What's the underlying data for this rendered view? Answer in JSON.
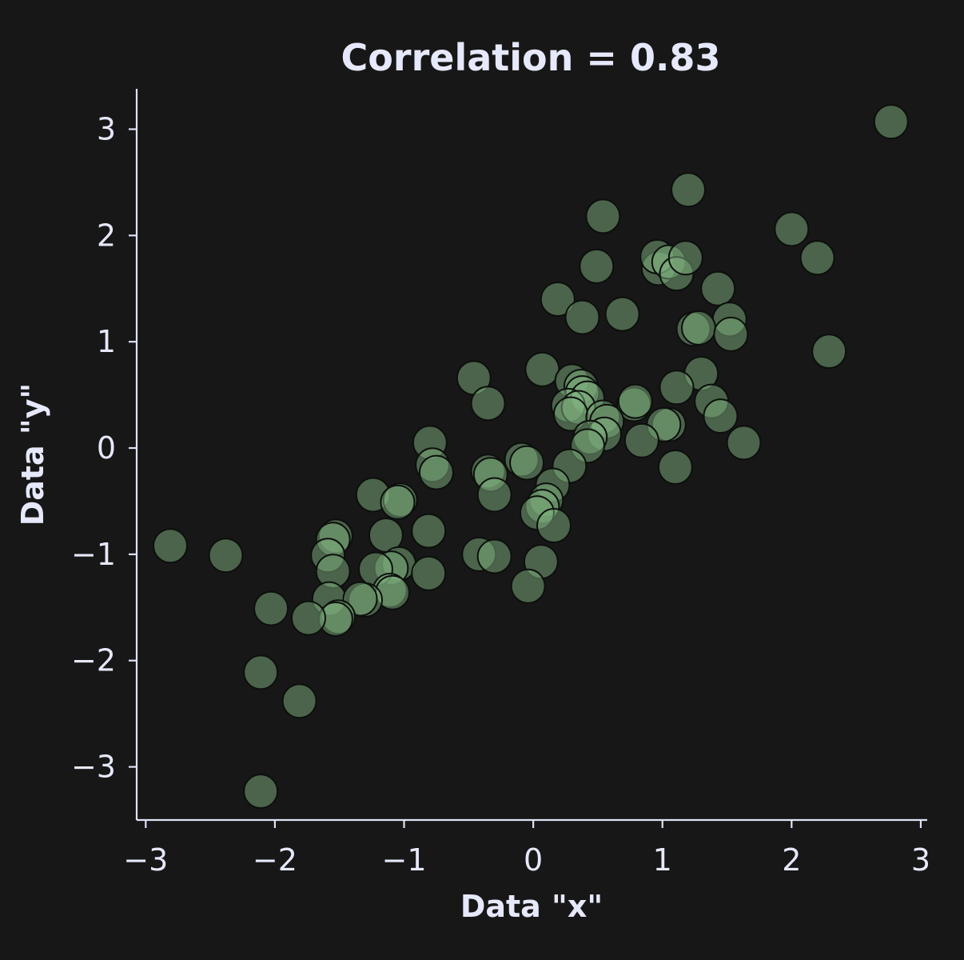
{
  "chart_data": {
    "type": "scatter",
    "title": "Correlation = 0.83",
    "xlabel": "Data \"x\"",
    "ylabel": "Data \"y\"",
    "xlim": [
      -3.07,
      3.05
    ],
    "ylim": [
      -3.5,
      3.38
    ],
    "x_ticks": [
      -3,
      -2,
      -1,
      0,
      1,
      2,
      3
    ],
    "y_ticks": [
      -3,
      -2,
      -1,
      0,
      1,
      2,
      3
    ],
    "x_tick_labels": [
      "−3",
      "−2",
      "−1",
      "0",
      "1",
      "2",
      "3"
    ],
    "y_tick_labels": [
      "−3",
      "−2",
      "−1",
      "0",
      "1",
      "2",
      "3"
    ],
    "grid": false,
    "legend": "none",
    "marker_color": "#7fb27f",
    "marker_edge": "#0c0f0c",
    "background": "#171717",
    "text_color": "#e6e8fb",
    "points": [
      {
        "x": 2.77,
        "y": 3.07
      },
      {
        "x": 1.2,
        "y": 2.43
      },
      {
        "x": 0.54,
        "y": 2.18
      },
      {
        "x": 2.0,
        "y": 2.06
      },
      {
        "x": 2.2,
        "y": 1.79
      },
      {
        "x": 0.49,
        "y": 1.71
      },
      {
        "x": 0.97,
        "y": 1.69
      },
      {
        "x": 0.96,
        "y": 1.8
      },
      {
        "x": 1.05,
        "y": 1.75
      },
      {
        "x": 1.11,
        "y": 1.64
      },
      {
        "x": 1.18,
        "y": 1.79
      },
      {
        "x": 1.43,
        "y": 1.5
      },
      {
        "x": 0.19,
        "y": 1.4
      },
      {
        "x": 0.38,
        "y": 1.23
      },
      {
        "x": 0.69,
        "y": 1.26
      },
      {
        "x": 1.52,
        "y": 1.21
      },
      {
        "x": 1.24,
        "y": 1.12
      },
      {
        "x": 1.28,
        "y": 1.13
      },
      {
        "x": 1.53,
        "y": 1.07
      },
      {
        "x": 2.29,
        "y": 0.91
      },
      {
        "x": 0.07,
        "y": 0.74
      },
      {
        "x": 1.3,
        "y": 0.7
      },
      {
        "x": -0.46,
        "y": 0.66
      },
      {
        "x": 0.3,
        "y": 0.63
      },
      {
        "x": 0.37,
        "y": 0.58
      },
      {
        "x": 1.11,
        "y": 0.57
      },
      {
        "x": 0.38,
        "y": 0.52
      },
      {
        "x": 0.42,
        "y": 0.47
      },
      {
        "x": -0.35,
        "y": 0.42
      },
      {
        "x": 1.38,
        "y": 0.44
      },
      {
        "x": 0.78,
        "y": 0.41
      },
      {
        "x": 0.79,
        "y": 0.44
      },
      {
        "x": 0.27,
        "y": 0.4
      },
      {
        "x": 0.35,
        "y": 0.38
      },
      {
        "x": 0.29,
        "y": 0.32
      },
      {
        "x": 1.45,
        "y": 0.3
      },
      {
        "x": 0.54,
        "y": 0.29
      },
      {
        "x": 0.57,
        "y": 0.25
      },
      {
        "x": 1.05,
        "y": 0.22
      },
      {
        "x": 1.01,
        "y": 0.22
      },
      {
        "x": 0.55,
        "y": 0.13
      },
      {
        "x": 0.44,
        "y": 0.1
      },
      {
        "x": 0.84,
        "y": 0.07
      },
      {
        "x": -0.8,
        "y": 0.05
      },
      {
        "x": 1.63,
        "y": 0.05
      },
      {
        "x": 0.42,
        "y": 0.02
      },
      {
        "x": -0.09,
        "y": -0.11
      },
      {
        "x": -0.05,
        "y": -0.14
      },
      {
        "x": -0.78,
        "y": -0.16
      },
      {
        "x": -0.75,
        "y": -0.23
      },
      {
        "x": -0.35,
        "y": -0.22
      },
      {
        "x": -0.33,
        "y": -0.25
      },
      {
        "x": 1.1,
        "y": -0.18
      },
      {
        "x": 0.28,
        "y": -0.17
      },
      {
        "x": 0.15,
        "y": -0.35
      },
      {
        "x": -1.24,
        "y": -0.44
      },
      {
        "x": -0.3,
        "y": -0.44
      },
      {
        "x": -1.03,
        "y": -0.49
      },
      {
        "x": -1.05,
        "y": -0.51
      },
      {
        "x": 0.1,
        "y": -0.49
      },
      {
        "x": 0.07,
        "y": -0.55
      },
      {
        "x": 0.03,
        "y": -0.61
      },
      {
        "x": 0.16,
        "y": -0.73
      },
      {
        "x": -1.14,
        "y": -0.82
      },
      {
        "x": -0.81,
        "y": -0.78
      },
      {
        "x": -1.53,
        "y": -0.83
      },
      {
        "x": -1.55,
        "y": -0.86
      },
      {
        "x": -2.81,
        "y": -0.92
      },
      {
        "x": -2.38,
        "y": -1.01
      },
      {
        "x": -1.59,
        "y": -1.01
      },
      {
        "x": -0.42,
        "y": -1.0
      },
      {
        "x": -0.3,
        "y": -1.02
      },
      {
        "x": 0.06,
        "y": -1.07
      },
      {
        "x": -1.04,
        "y": -1.09
      },
      {
        "x": -1.1,
        "y": -1.13
      },
      {
        "x": -1.22,
        "y": -1.14
      },
      {
        "x": -1.55,
        "y": -1.16
      },
      {
        "x": -0.81,
        "y": -1.18
      },
      {
        "x": -0.04,
        "y": -1.3
      },
      {
        "x": -1.11,
        "y": -1.34
      },
      {
        "x": -1.09,
        "y": -1.36
      },
      {
        "x": -1.58,
        "y": -1.42
      },
      {
        "x": -1.3,
        "y": -1.43
      },
      {
        "x": -1.34,
        "y": -1.42
      },
      {
        "x": -2.03,
        "y": -1.51
      },
      {
        "x": -1.51,
        "y": -1.59
      },
      {
        "x": -1.53,
        "y": -1.61
      },
      {
        "x": -1.74,
        "y": -1.6
      },
      {
        "x": -2.11,
        "y": -2.11
      },
      {
        "x": -1.81,
        "y": -2.38
      },
      {
        "x": -2.11,
        "y": -3.23
      }
    ]
  }
}
